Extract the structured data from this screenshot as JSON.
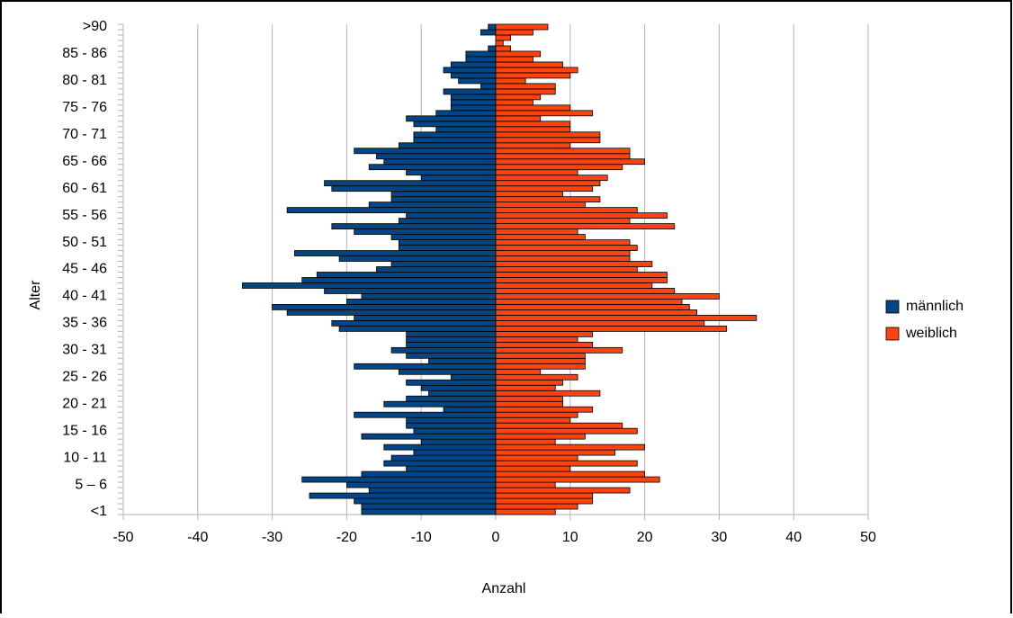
{
  "chart_data": {
    "type": "pyramid",
    "x_label": "Anzahl",
    "y_label": "Alter",
    "categories": [
      "<1",
      null,
      null,
      null,
      null,
      "5 – 6",
      null,
      null,
      null,
      null,
      "10 - 11",
      null,
      null,
      null,
      null,
      "15 - 16",
      null,
      null,
      null,
      null,
      "20 - 21",
      null,
      null,
      null,
      null,
      "25 - 26",
      null,
      null,
      null,
      null,
      "30 - 31",
      null,
      null,
      null,
      null,
      "35 - 36",
      null,
      null,
      null,
      null,
      "40 - 41",
      null,
      null,
      null,
      null,
      "45 - 46",
      null,
      null,
      null,
      null,
      "50 - 51",
      null,
      null,
      null,
      null,
      "55 - 56",
      null,
      null,
      null,
      null,
      "60 - 61",
      null,
      null,
      null,
      null,
      "65 - 66",
      null,
      null,
      null,
      null,
      "70 - 71",
      null,
      null,
      null,
      null,
      "75 - 76",
      null,
      null,
      null,
      null,
      "80 - 81",
      null,
      null,
      null,
      null,
      "85 - 86",
      null,
      null,
      null,
      null,
      ">90"
    ],
    "series": [
      {
        "name": "männlich",
        "color": "#004586",
        "values": [
          -18,
          -18,
          -19,
          -25,
          -17,
          -20,
          -26,
          -18,
          -12,
          -15,
          -14,
          -11,
          -15,
          -10,
          -18,
          -11,
          -12,
          -12,
          -19,
          -7,
          -15,
          -12,
          -9,
          -10,
          -12,
          -6,
          -13,
          -19,
          -9,
          -12,
          -14,
          -12,
          -12,
          -12,
          -21,
          -22,
          -19,
          -28,
          -30,
          -20,
          -18,
          -23,
          -34,
          -26,
          -24,
          -16,
          -14,
          -21,
          -27,
          -13,
          -13,
          -14,
          -19,
          -22,
          -13,
          -12,
          -28,
          -17,
          -14,
          -14,
          -22,
          -23,
          -10,
          -12,
          -17,
          -15,
          -16,
          -19,
          -13,
          -11,
          -11,
          -8,
          -11,
          -12,
          -8,
          -6,
          -6,
          -6,
          -7,
          -2,
          -5,
          -6,
          -7,
          -6,
          -4,
          -4,
          -1,
          0,
          0,
          -2,
          -1
        ]
      },
      {
        "name": "weiblich",
        "color": "#ff420e",
        "values": [
          8,
          11,
          13,
          13,
          18,
          8,
          22,
          20,
          10,
          19,
          11,
          16,
          20,
          8,
          12,
          19,
          17,
          10,
          11,
          13,
          9,
          9,
          14,
          8,
          9,
          11,
          6,
          12,
          12,
          12,
          17,
          13,
          11,
          13,
          31,
          28,
          35,
          27,
          26,
          25,
          30,
          24,
          21,
          23,
          23,
          19,
          21,
          18,
          18,
          19,
          18,
          12,
          11,
          24,
          18,
          23,
          19,
          12,
          14,
          9,
          13,
          14,
          15,
          11,
          17,
          20,
          18,
          18,
          10,
          14,
          14,
          10,
          10,
          6,
          13,
          10,
          5,
          6,
          8,
          8,
          4,
          10,
          11,
          9,
          5,
          6,
          2,
          1,
          2,
          5,
          7
        ]
      }
    ],
    "xlim": [
      -50,
      50
    ],
    "xticks": [
      -50,
      -40,
      -30,
      -20,
      -10,
      0,
      10,
      20,
      30,
      40,
      50
    ],
    "grid": true,
    "legend": "right"
  }
}
